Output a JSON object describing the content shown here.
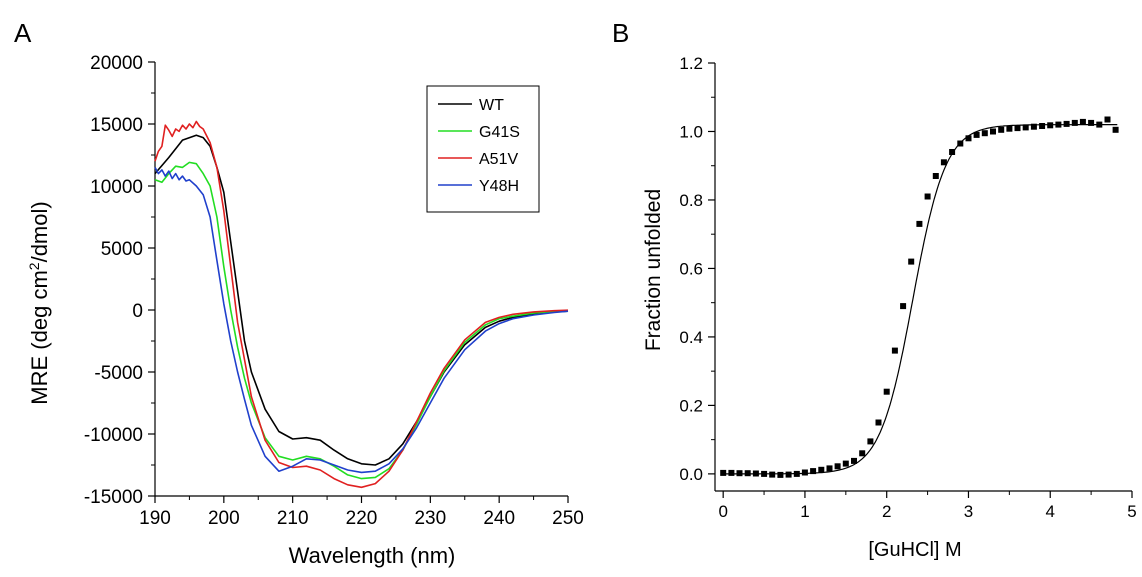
{
  "colors": {
    "axis": "#000000",
    "WT": "#000000",
    "G41S": "#22dd22",
    "A51V": "#e02020",
    "Y48H": "#2040cc"
  },
  "chart_data": [
    {
      "panel_label": "A",
      "type": "line",
      "xlabel": "Wavelength (nm)",
      "ylabel_prefix": "MRE (deg cm",
      "ylabel_sup": "2",
      "ylabel_suffix": "/dmol)",
      "xlim": [
        190,
        250
      ],
      "ylim": [
        -15000,
        20000
      ],
      "xticks": [
        190,
        200,
        210,
        220,
        230,
        240,
        250
      ],
      "yticks": [
        -15000,
        -10000,
        -5000,
        0,
        5000,
        10000,
        15000,
        20000
      ],
      "xtick_labels": [
        "190",
        "200",
        "210",
        "220",
        "230",
        "240",
        "250"
      ],
      "ytick_labels": [
        "-15000",
        "-10000",
        "-5000",
        "0",
        "5000",
        "10000",
        "15000",
        "20000"
      ],
      "legend_position": "top-right",
      "series": [
        {
          "name": "WT",
          "x": [
            190,
            192,
            194,
            196,
            197,
            198,
            199,
            200,
            201,
            202,
            203,
            204,
            206,
            208,
            210,
            212,
            214,
            216,
            218,
            220,
            222,
            224,
            226,
            228,
            230,
            232,
            235,
            238,
            240,
            242,
            245,
            248,
            250
          ],
          "y": [
            11000,
            12300,
            13700,
            14100,
            13900,
            13200,
            11500,
            9500,
            5500,
            1500,
            -2500,
            -5000,
            -8000,
            -9800,
            -10400,
            -10300,
            -10500,
            -11300,
            -12000,
            -12400,
            -12500,
            -12000,
            -10800,
            -9000,
            -7000,
            -5000,
            -2800,
            -1400,
            -900,
            -600,
            -300,
            -150,
            -100
          ]
        },
        {
          "name": "G41S",
          "x": [
            190,
            191,
            192,
            193,
            194,
            195,
            196,
            197,
            198,
            199,
            200,
            201,
            202,
            203,
            204,
            206,
            208,
            210,
            212,
            214,
            216,
            218,
            220,
            222,
            224,
            226,
            228,
            230,
            232,
            235,
            238,
            240,
            242,
            245,
            248,
            250
          ],
          "y": [
            10500,
            10300,
            11000,
            11600,
            11500,
            11900,
            11800,
            11000,
            10000,
            7500,
            3500,
            0,
            -3000,
            -5500,
            -7500,
            -10300,
            -11800,
            -12100,
            -11800,
            -12000,
            -12600,
            -13300,
            -13600,
            -13500,
            -12800,
            -11300,
            -9200,
            -7000,
            -4900,
            -2600,
            -1200,
            -700,
            -500,
            -250,
            -120,
            -100
          ]
        },
        {
          "name": "A51V",
          "x": [
            190,
            190.5,
            191,
            191.5,
            192,
            192.5,
            193,
            193.5,
            194,
            194.5,
            195,
            195.5,
            196,
            196.5,
            197,
            198,
            199,
            200,
            201,
            202,
            204,
            206,
            208,
            210,
            212,
            214,
            216,
            218,
            220,
            222,
            224,
            226,
            228,
            230,
            232,
            235,
            238,
            240,
            242,
            245,
            248,
            250
          ],
          "y": [
            12000,
            12800,
            13200,
            14900,
            14500,
            14000,
            14600,
            14400,
            14900,
            14600,
            15000,
            14700,
            15200,
            14800,
            14600,
            13500,
            11500,
            8000,
            3500,
            -1000,
            -7000,
            -10500,
            -12300,
            -12700,
            -12600,
            -12900,
            -13600,
            -14100,
            -14300,
            -14000,
            -13000,
            -11300,
            -9000,
            -6700,
            -4700,
            -2400,
            -1000,
            -600,
            -350,
            -150,
            -60,
            -20
          ]
        },
        {
          "name": "Y48H",
          "x": [
            190,
            190.5,
            191,
            191.5,
            192,
            192.5,
            193,
            193.5,
            194,
            194.5,
            195,
            196,
            197,
            198,
            199,
            200,
            201,
            202,
            203,
            204,
            206,
            208,
            210,
            212,
            214,
            216,
            218,
            220,
            222,
            224,
            226,
            228,
            230,
            232,
            235,
            238,
            240,
            242,
            245,
            248,
            250
          ],
          "y": [
            11500,
            11000,
            11300,
            10800,
            11200,
            10600,
            11000,
            10500,
            10800,
            10400,
            10500,
            10000,
            9300,
            7500,
            4000,
            500,
            -2500,
            -5000,
            -7200,
            -9300,
            -11800,
            -13000,
            -12600,
            -12000,
            -12100,
            -12500,
            -12900,
            -13100,
            -13000,
            -12400,
            -11200,
            -9500,
            -7500,
            -5500,
            -3200,
            -1700,
            -1100,
            -700,
            -400,
            -200,
            -100
          ]
        }
      ]
    },
    {
      "panel_label": "B",
      "type": "scatter",
      "xlabel": "[GuHCl] M",
      "ylabel": "Fraction unfolded",
      "xlim": [
        -0.1,
        5
      ],
      "ylim": [
        -0.05,
        1.2
      ],
      "xticks": [
        0,
        1,
        2,
        3,
        4,
        5
      ],
      "yticks": [
        0.0,
        0.2,
        0.4,
        0.6,
        0.8,
        1.0,
        1.2
      ],
      "xtick_labels": [
        "0",
        "1",
        "2",
        "3",
        "4",
        "5"
      ],
      "ytick_labels": [
        "0.0",
        "0.2",
        "0.4",
        "0.6",
        "0.8",
        "1.0",
        "1.2"
      ],
      "series": [
        {
          "x": [
            0.0,
            0.1,
            0.2,
            0.3,
            0.4,
            0.5,
            0.6,
            0.7,
            0.8,
            0.9,
            1.0,
            1.1,
            1.2,
            1.3,
            1.4,
            1.5,
            1.6,
            1.7,
            1.8,
            1.9,
            2.0,
            2.1,
            2.2,
            2.3,
            2.4,
            2.5,
            2.6,
            2.7,
            2.8,
            2.9,
            3.0,
            3.1,
            3.2,
            3.3,
            3.4,
            3.5,
            3.6,
            3.7,
            3.8,
            3.9,
            4.0,
            4.1,
            4.2,
            4.3,
            4.4,
            4.5,
            4.6,
            4.7,
            4.8
          ],
          "y": [
            0.003,
            0.003,
            0.002,
            0.002,
            0.001,
            0.0,
            -0.002,
            -0.003,
            -0.002,
            0.0,
            0.004,
            0.008,
            0.012,
            0.016,
            0.022,
            0.03,
            0.038,
            0.06,
            0.095,
            0.15,
            0.24,
            0.36,
            0.49,
            0.62,
            0.73,
            0.81,
            0.87,
            0.91,
            0.94,
            0.965,
            0.98,
            0.99,
            0.995,
            1.0,
            1.005,
            1.008,
            1.01,
            1.012,
            1.014,
            1.016,
            1.018,
            1.02,
            1.022,
            1.025,
            1.028,
            1.025,
            1.02,
            1.035,
            1.005
          ]
        }
      ]
    }
  ]
}
